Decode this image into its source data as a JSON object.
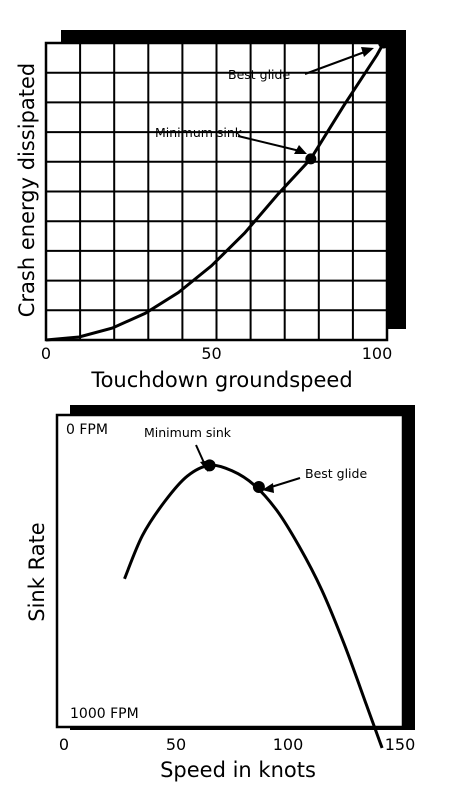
{
  "chart_data": [
    {
      "type": "line",
      "xlabel": "Touchdown groundspeed",
      "ylabel": "Crash energy dissipated",
      "xlim": [
        0,
        102
      ],
      "x_ticks": [
        "0",
        "50",
        "100"
      ],
      "x_tick_values": [
        0,
        50,
        100
      ],
      "grid": true,
      "series": [
        {
          "x": [
            0,
            10,
            20,
            30,
            40,
            50,
            60,
            70,
            80,
            90,
            100,
            102
          ],
          "y": [
            0.0,
            0.01,
            0.04,
            0.09,
            0.16,
            0.25,
            0.36,
            0.49,
            0.61,
            0.79,
            0.96,
            1.0
          ]
        }
      ],
      "points": [
        {
          "label": "Minimum sink",
          "x": 80,
          "y": 0.61
        },
        {
          "label": "Best glide",
          "x": 102,
          "y": 1.0
        }
      ]
    },
    {
      "type": "line",
      "xlabel": "Speed in knots",
      "ylabel": "Sink Rate",
      "xlim": [
        0,
        150
      ],
      "x_ticks": [
        "0",
        "50",
        "100",
        "150"
      ],
      "x_tick_values": [
        0,
        50,
        100,
        150
      ],
      "y_labels": {
        "top": "0 FPM",
        "bottom": "1000 FPM"
      },
      "ylim": [
        0,
        1000
      ],
      "grid": false,
      "series": [
        {
          "x": [
            27,
            35,
            45,
            55,
            65,
            75,
            85,
            95,
            105,
            115,
            125,
            135,
            142
          ],
          "y": [
            330,
            210,
            115,
            45,
            15,
            30,
            70,
            140,
            240,
            360,
            510,
            680,
            800
          ]
        }
      ],
      "points": [
        {
          "label": "Minimum sink",
          "x": 65,
          "y": 15
        },
        {
          "label": "Best glide",
          "x": 87,
          "y": 75
        }
      ]
    }
  ]
}
